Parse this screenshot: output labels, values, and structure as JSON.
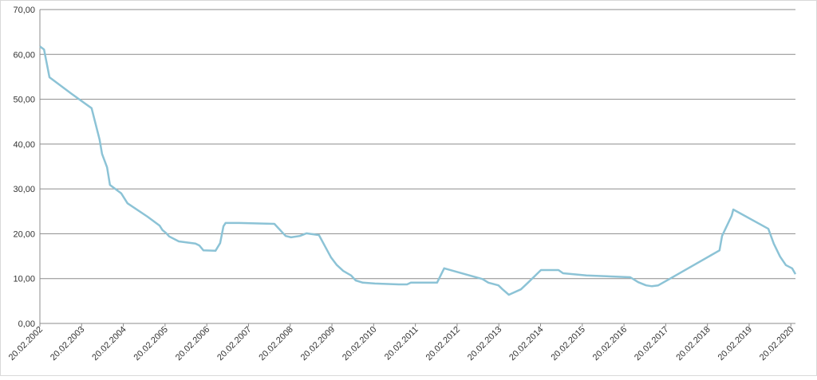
{
  "chart_data": {
    "type": "line",
    "x": [
      2002.13,
      2002.23,
      2002.36,
      2002.89,
      2003.37,
      2003.56,
      2003.62,
      2003.74,
      2003.81,
      2004.08,
      2004.23,
      2004.71,
      2005.0,
      2005.07,
      2005.15,
      2005.23,
      2005.46,
      2005.86,
      2005.95,
      2006.05,
      2006.34,
      2006.45,
      2006.53,
      2006.58,
      2006.91,
      2007.75,
      2008.02,
      2008.15,
      2008.36,
      2008.52,
      2008.82,
      2008.97,
      2009.11,
      2009.24,
      2009.4,
      2009.59,
      2009.7,
      2009.87,
      2010.16,
      2010.73,
      2010.93,
      2011.02,
      2011.65,
      2011.82,
      2012.74,
      2012.88,
      2013.12,
      2013.22,
      2013.37,
      2013.66,
      2013.83,
      2014.14,
      2014.56,
      2014.67,
      2015.23,
      2016.28,
      2016.47,
      2016.66,
      2016.8,
      2016.95,
      2017.2,
      2018.42,
      2018.48,
      2018.71,
      2018.75,
      2019.59,
      2019.72,
      2019.87,
      2020.01,
      2020.16,
      2020.24
    ],
    "series": [
      {
        "color": "#8cc3d6",
        "values": [
          61.8,
          61.1,
          54.9,
          51.2,
          48.0,
          41.0,
          37.8,
          34.8,
          30.9,
          29.0,
          26.8,
          23.8,
          21.8,
          20.8,
          20.2,
          19.4,
          18.3,
          17.8,
          17.4,
          16.3,
          16.2,
          17.9,
          21.7,
          22.4,
          22.4,
          22.2,
          19.5,
          19.2,
          19.5,
          20.1,
          19.7,
          17.1,
          14.7,
          13.1,
          11.7,
          10.7,
          9.6,
          9.1,
          8.9,
          8.7,
          8.7,
          9.1,
          9.1,
          12.3,
          9.9,
          9.1,
          8.5,
          7.6,
          6.4,
          7.6,
          9.1,
          11.9,
          11.9,
          11.2,
          10.7,
          10.3,
          9.2,
          8.5,
          8.3,
          8.5,
          9.8,
          16.3,
          19.5,
          24.0,
          25.4,
          21.1,
          17.8,
          14.9,
          13.0,
          12.3,
          11.0
        ]
      }
    ],
    "xlim": [
      2002.13,
      2020.24
    ],
    "xticks": [
      {
        "value": 2002.13,
        "label": "20.02.2002"
      },
      {
        "value": 2003.13,
        "label": "20.02.2003"
      },
      {
        "value": 2004.13,
        "label": "20.02.2004"
      },
      {
        "value": 2005.13,
        "label": "20.02.2005"
      },
      {
        "value": 2006.13,
        "label": "20.02.2006"
      },
      {
        "value": 2007.13,
        "label": "20.02.2007"
      },
      {
        "value": 2008.13,
        "label": "20.02.2008"
      },
      {
        "value": 2009.13,
        "label": "20.02.2009"
      },
      {
        "value": 2010.13,
        "label": "20.02.2010"
      },
      {
        "value": 2011.13,
        "label": "20.02.2011"
      },
      {
        "value": 2012.13,
        "label": "20.02.2012"
      },
      {
        "value": 2013.13,
        "label": "20.02.2013"
      },
      {
        "value": 2014.13,
        "label": "20.02.2014"
      },
      {
        "value": 2015.13,
        "label": "20.02.2015"
      },
      {
        "value": 2016.13,
        "label": "20.02.2016"
      },
      {
        "value": 2017.13,
        "label": "20.02.2017"
      },
      {
        "value": 2018.13,
        "label": "20.02.2018"
      },
      {
        "value": 2019.13,
        "label": "20.02.2019"
      },
      {
        "value": 2020.13,
        "label": "20.02.2020"
      }
    ],
    "ylim": [
      0,
      70
    ],
    "yticks": [
      {
        "value": 0,
        "label": "0,00"
      },
      {
        "value": 10,
        "label": "10,00"
      },
      {
        "value": 20,
        "label": "20,00"
      },
      {
        "value": 30,
        "label": "30,00"
      },
      {
        "value": 40,
        "label": "40,00"
      },
      {
        "value": 50,
        "label": "50,00"
      },
      {
        "value": 60,
        "label": "60,00"
      },
      {
        "value": 70,
        "label": "70,00"
      }
    ],
    "grid": true
  }
}
